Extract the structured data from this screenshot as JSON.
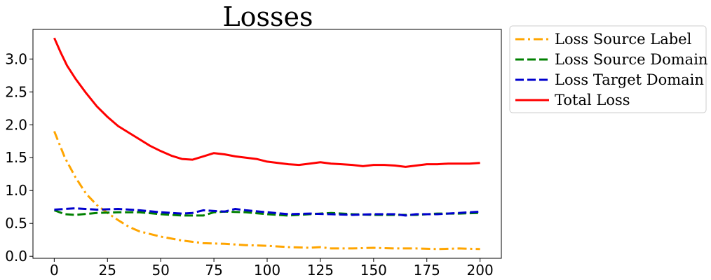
{
  "chart_data": {
    "type": "line",
    "title": "Losses",
    "xlabel": "",
    "ylabel": "",
    "xlim": [
      -10,
      210
    ],
    "ylim": [
      -0.03,
      3.45
    ],
    "grid": false,
    "legend_position": "outside-top-right",
    "xticks": [
      0,
      25,
      50,
      75,
      100,
      125,
      150,
      175,
      200
    ],
    "xtick_labels": [
      "0",
      "25",
      "50",
      "75",
      "100",
      "125",
      "150",
      "175",
      "200"
    ],
    "yticks": [
      0.0,
      0.5,
      1.0,
      1.5,
      2.0,
      2.5,
      3.0
    ],
    "ytick_labels": [
      "0.0",
      "0.5",
      "1.0",
      "1.5",
      "2.0",
      "2.5",
      "3.0"
    ],
    "series": [
      {
        "name": "Loss Source Label",
        "color": "#ffa500",
        "dash": "dashdot",
        "x": [
          0,
          5,
          10,
          15,
          20,
          25,
          30,
          35,
          40,
          50,
          60,
          70,
          80,
          90,
          100,
          110,
          120,
          125,
          130,
          140,
          150,
          160,
          170,
          180,
          190,
          200
        ],
        "y": [
          1.9,
          1.5,
          1.2,
          0.95,
          0.78,
          0.66,
          0.55,
          0.45,
          0.38,
          0.3,
          0.24,
          0.2,
          0.19,
          0.17,
          0.16,
          0.14,
          0.13,
          0.14,
          0.12,
          0.12,
          0.13,
          0.12,
          0.12,
          0.11,
          0.12,
          0.11
        ]
      },
      {
        "name": "Loss Source Domain",
        "color": "#008000",
        "dash": "dashed",
        "x": [
          0,
          5,
          10,
          20,
          30,
          40,
          50,
          60,
          70,
          75,
          80,
          90,
          100,
          110,
          120,
          130,
          140,
          150,
          160,
          170,
          180,
          190,
          200
        ],
        "y": [
          0.7,
          0.64,
          0.63,
          0.66,
          0.67,
          0.67,
          0.64,
          0.62,
          0.62,
          0.67,
          0.68,
          0.67,
          0.64,
          0.62,
          0.64,
          0.66,
          0.64,
          0.63,
          0.63,
          0.63,
          0.65,
          0.65,
          0.66
        ]
      },
      {
        "name": "Loss Target Domain",
        "color": "#0000cd",
        "dash": "dashed",
        "x": [
          0,
          5,
          10,
          20,
          30,
          40,
          50,
          60,
          65,
          70,
          80,
          85,
          90,
          100,
          110,
          120,
          130,
          140,
          150,
          160,
          165,
          170,
          180,
          190,
          200
        ],
        "y": [
          0.71,
          0.72,
          0.73,
          0.71,
          0.72,
          0.7,
          0.67,
          0.65,
          0.66,
          0.7,
          0.68,
          0.72,
          0.7,
          0.67,
          0.64,
          0.65,
          0.64,
          0.63,
          0.64,
          0.64,
          0.62,
          0.64,
          0.64,
          0.66,
          0.68
        ]
      },
      {
        "name": "Total Loss",
        "color": "#ff0000",
        "dash": "solid",
        "x": [
          0,
          3,
          6,
          10,
          15,
          20,
          25,
          30,
          35,
          40,
          45,
          50,
          55,
          60,
          65,
          70,
          75,
          80,
          85,
          90,
          95,
          100,
          105,
          110,
          115,
          120,
          125,
          130,
          135,
          140,
          145,
          150,
          155,
          160,
          165,
          170,
          175,
          180,
          185,
          190,
          195,
          200
        ],
        "y": [
          3.32,
          3.1,
          2.9,
          2.7,
          2.48,
          2.28,
          2.12,
          1.98,
          1.88,
          1.78,
          1.68,
          1.6,
          1.53,
          1.48,
          1.47,
          1.52,
          1.57,
          1.55,
          1.52,
          1.5,
          1.48,
          1.44,
          1.42,
          1.4,
          1.39,
          1.41,
          1.43,
          1.41,
          1.4,
          1.39,
          1.37,
          1.39,
          1.39,
          1.38,
          1.36,
          1.38,
          1.4,
          1.4,
          1.41,
          1.41,
          1.41,
          1.42
        ]
      }
    ]
  }
}
